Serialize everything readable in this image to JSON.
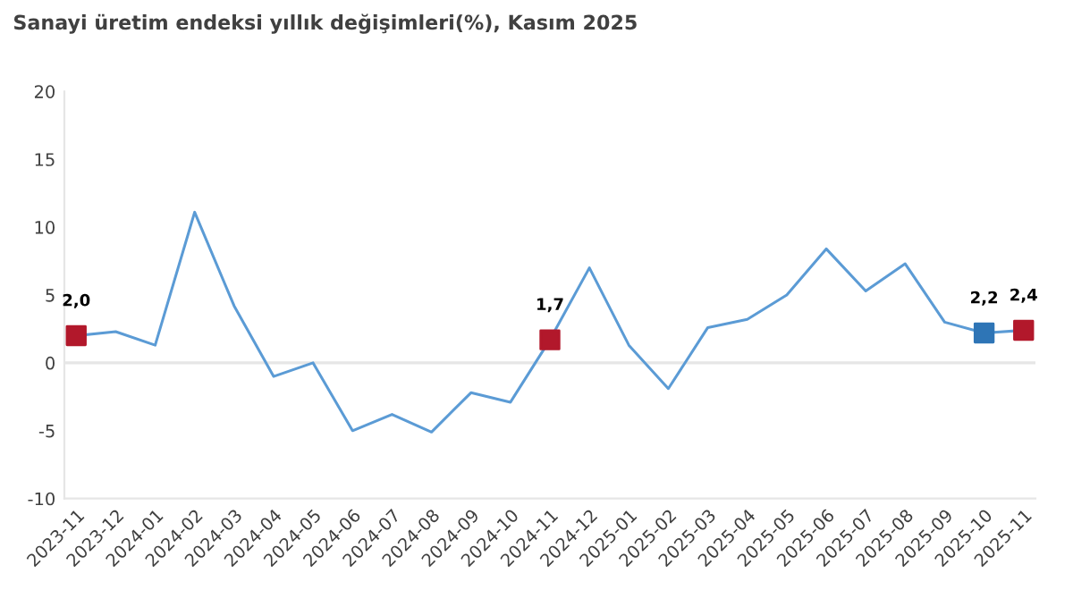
{
  "chart_data": {
    "type": "line",
    "title": "Sanayi üretim endeksi yıllık değişimleri(%), Kasım 2025",
    "categories": [
      "2023-11",
      "2023-12",
      "2024-01",
      "2024-02",
      "2024-03",
      "2024-04",
      "2024-05",
      "2024-06",
      "2024-07",
      "2024-08",
      "2024-09",
      "2024-10",
      "2024-11",
      "2024-12",
      "2025-01",
      "2025-02",
      "2025-03",
      "2025-04",
      "2025-05",
      "2025-06",
      "2025-07",
      "2025-08",
      "2025-09",
      "2025-10",
      "2025-11"
    ],
    "series": [
      {
        "color": "#5b9bd5",
        "marker": "none",
        "values": [
          2.0,
          2.3,
          1.3,
          11.1,
          4.2,
          -1.0,
          0.0,
          -5.0,
          -3.8,
          -5.1,
          -2.2,
          -2.9,
          1.7,
          7.0,
          1.3,
          -1.9,
          2.6,
          3.2,
          5.0,
          8.4,
          5.3,
          7.3,
          3.0,
          2.2,
          2.4
        ]
      },
      {
        "type": "scatter",
        "marker": "square",
        "values": [
          2.0,
          null,
          null,
          null,
          null,
          null,
          null,
          null,
          null,
          null,
          null,
          null,
          1.7,
          null,
          null,
          null,
          null,
          null,
          null,
          null,
          null,
          null,
          null,
          2.2,
          2.4
        ],
        "colors": [
          "#b2182b",
          null,
          null,
          null,
          null,
          null,
          null,
          null,
          null,
          null,
          null,
          null,
          "#b2182b",
          null,
          null,
          null,
          null,
          null,
          null,
          null,
          null,
          null,
          null,
          "#2e75b6",
          "#b2182b"
        ],
        "value_labels": [
          "2,0",
          null,
          null,
          null,
          null,
          null,
          null,
          null,
          null,
          null,
          null,
          null,
          "1,7",
          null,
          null,
          null,
          null,
          null,
          null,
          null,
          null,
          null,
          null,
          "2,2",
          "2,4"
        ]
      }
    ],
    "ylim": [
      -10,
      20
    ],
    "yticks": [
      -10,
      -5,
      0,
      5,
      10,
      15,
      20
    ],
    "ref_lines": [
      {
        "axis": "y",
        "value": 0,
        "color": "#e6e6e6"
      }
    ],
    "grid": false,
    "legend": false
  }
}
